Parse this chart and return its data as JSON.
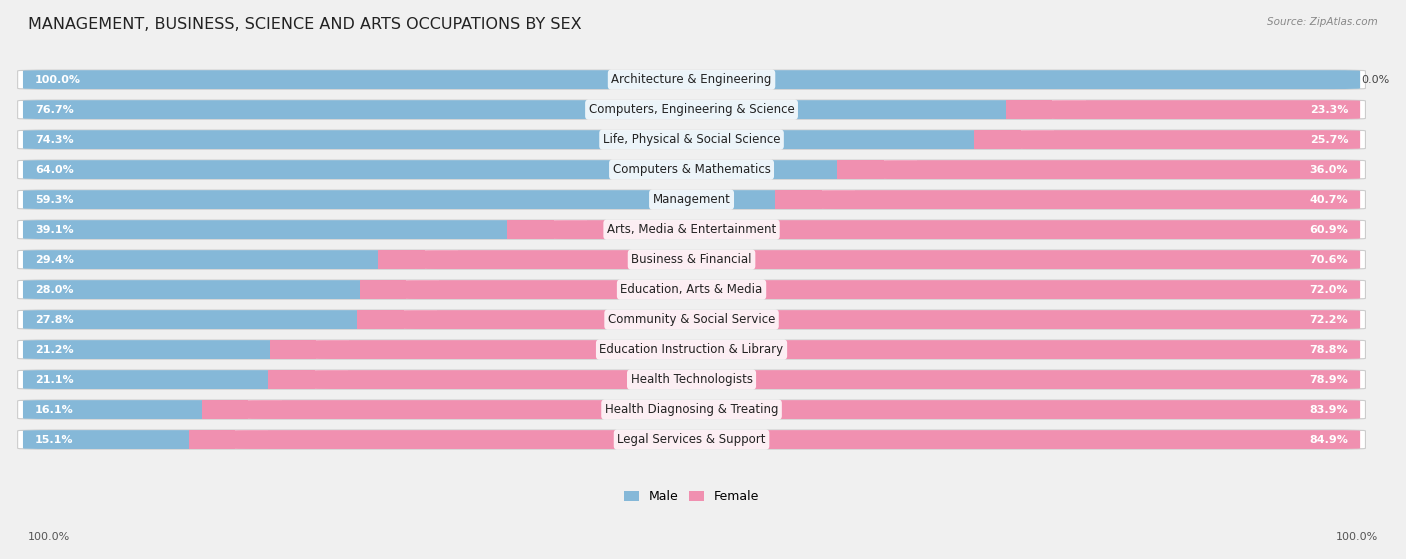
{
  "title": "MANAGEMENT, BUSINESS, SCIENCE AND ARTS OCCUPATIONS BY SEX",
  "source": "Source: ZipAtlas.com",
  "categories": [
    "Architecture & Engineering",
    "Computers, Engineering & Science",
    "Life, Physical & Social Science",
    "Computers & Mathematics",
    "Management",
    "Arts, Media & Entertainment",
    "Business & Financial",
    "Education, Arts & Media",
    "Community & Social Service",
    "Education Instruction & Library",
    "Health Technologists",
    "Health Diagnosing & Treating",
    "Legal Services & Support"
  ],
  "male_pct": [
    100.0,
    76.7,
    74.3,
    64.0,
    59.3,
    39.1,
    29.4,
    28.0,
    27.8,
    21.2,
    21.1,
    16.1,
    15.1
  ],
  "female_pct": [
    0.0,
    23.3,
    25.7,
    36.0,
    40.7,
    60.9,
    70.6,
    72.0,
    72.2,
    78.8,
    78.9,
    83.9,
    84.9
  ],
  "male_color": "#85b8d8",
  "female_color": "#f090b0",
  "bg_color": "#f0f0f0",
  "bar_bg_color": "#ffffff",
  "row_bg_color": "#e8e8e8",
  "title_fontsize": 11.5,
  "label_fontsize": 8.5,
  "pct_fontsize": 8.0,
  "bar_height": 0.62,
  "figsize": [
    14.06,
    5.59
  ],
  "dpi": 100
}
